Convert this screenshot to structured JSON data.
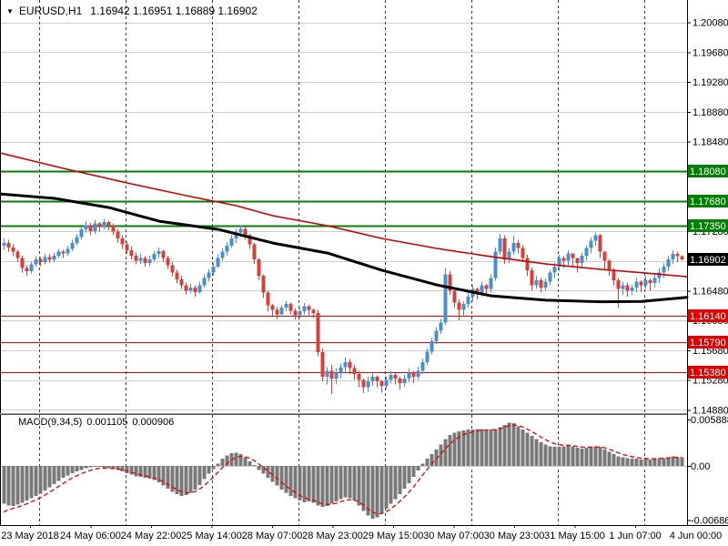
{
  "title": {
    "symbol": "EURUSD,H1",
    "ohlc": "1.16942 1.16951 1.16889 1.16902"
  },
  "indicator_label": {
    "name": "MACD(9,34,5)",
    "value_main": "0.001105",
    "value_signal": "0.000906"
  },
  "colors": {
    "background": "#ffffff",
    "bull_candle": "#4a8ed2",
    "bear_candle": "#d5403a",
    "ma_black": "#000000",
    "ma_red": "#cc0000",
    "resistance_green": "#008000",
    "support_red": "#e00000",
    "current_price_box": "#000000",
    "macd_histogram": "#787878",
    "macd_signal": "#e00000",
    "grid_h": "#cccccc",
    "grid_v": "#404040",
    "axis_line": "#000000",
    "text": "#000000"
  },
  "chart_data": {
    "type": "candlestick+macd",
    "symbol": "EURUSD",
    "timeframe": "H1",
    "last_bar": {
      "open": 1.16942,
      "high": 1.16951,
      "low": 1.16889,
      "close": 1.16902
    },
    "current_price": "1.16902",
    "price_axis": {
      "top": 1.20381,
      "bottom": 1.14822,
      "grid_start": 1.2008,
      "grid_step": 0.004,
      "grid_count": 14,
      "labels": [
        "1.20080",
        "1.19680",
        "1.19280",
        "1.18880",
        "1.18480",
        "1.17280",
        "1.16480",
        "1.16080",
        "1.15680",
        "1.15280",
        "1.14880"
      ]
    },
    "sr_levels": [
      {
        "price": 1.1808,
        "label": "1.18080",
        "kind": "resistance"
      },
      {
        "price": 1.1768,
        "label": "1.17680",
        "kind": "resistance"
      },
      {
        "price": 1.1735,
        "label": "1.17350",
        "kind": "resistance"
      },
      {
        "price": 1.1614,
        "label": "1.16140",
        "kind": "support"
      },
      {
        "price": 1.1579,
        "label": "1.15790",
        "kind": "support"
      },
      {
        "price": 1.1538,
        "label": "1.15380",
        "kind": "support"
      }
    ],
    "candles": {
      "first_open": 1.1708,
      "hlc": [
        [
          1.1718,
          1.1702,
          1.1712
        ],
        [
          1.1716,
          1.17,
          1.1706
        ],
        [
          1.171,
          1.1694,
          1.17
        ],
        [
          1.1703,
          1.1686,
          1.1692
        ],
        [
          1.1695,
          1.1672,
          1.1678
        ],
        [
          1.1682,
          1.1668,
          1.1674
        ],
        [
          1.1687,
          1.1671,
          1.1683
        ],
        [
          1.1694,
          1.168,
          1.169
        ],
        [
          1.1693,
          1.1681,
          1.1686
        ],
        [
          1.1697,
          1.1683,
          1.1693
        ],
        [
          1.1697,
          1.1685,
          1.1689
        ],
        [
          1.1699,
          1.1686,
          1.1695
        ],
        [
          1.1704,
          1.1692,
          1.17
        ],
        [
          1.1703,
          1.1692,
          1.1698
        ],
        [
          1.1708,
          1.1695,
          1.1704
        ],
        [
          1.1716,
          1.1701,
          1.1712
        ],
        [
          1.1724,
          1.1709,
          1.172
        ],
        [
          1.1734,
          1.1716,
          1.173
        ],
        [
          1.1741,
          1.1726,
          1.1736
        ],
        [
          1.1739,
          1.1722,
          1.1728
        ],
        [
          1.1743,
          1.1724,
          1.1738
        ],
        [
          1.174,
          1.1727,
          1.1733
        ],
        [
          1.1744,
          1.173,
          1.174
        ],
        [
          1.1742,
          1.1729,
          1.1735
        ],
        [
          1.1738,
          1.1722,
          1.1727
        ],
        [
          1.173,
          1.1712,
          1.1718
        ],
        [
          1.1722,
          1.1704,
          1.171
        ],
        [
          1.1714,
          1.1697,
          1.1702
        ],
        [
          1.1707,
          1.169,
          1.1695
        ],
        [
          1.1699,
          1.1683,
          1.1688
        ],
        [
          1.1697,
          1.1684,
          1.1692
        ],
        [
          1.1694,
          1.168,
          1.1685
        ],
        [
          1.1695,
          1.1681,
          1.169
        ],
        [
          1.1701,
          1.1687,
          1.1697
        ],
        [
          1.1706,
          1.1692,
          1.1701
        ],
        [
          1.1703,
          1.1687,
          1.1692
        ],
        [
          1.1695,
          1.1677,
          1.1682
        ],
        [
          1.1686,
          1.1667,
          1.1672
        ],
        [
          1.1676,
          1.1658,
          1.1663
        ],
        [
          1.1668,
          1.165,
          1.1655
        ],
        [
          1.1659,
          1.1643,
          1.1648
        ],
        [
          1.1657,
          1.1644,
          1.1652
        ],
        [
          1.1655,
          1.164,
          1.1646
        ],
        [
          1.166,
          1.1644,
          1.1655
        ],
        [
          1.167,
          1.1652,
          1.1665
        ],
        [
          1.1677,
          1.166,
          1.1672
        ],
        [
          1.1685,
          1.1668,
          1.168
        ],
        [
          1.1697,
          1.1678,
          1.1692
        ],
        [
          1.1705,
          1.1688,
          1.17
        ],
        [
          1.1713,
          1.1695,
          1.1708
        ],
        [
          1.1723,
          1.1705,
          1.1718
        ],
        [
          1.1731,
          1.1712,
          1.1726
        ],
        [
          1.1736,
          1.172,
          1.1731
        ],
        [
          1.1733,
          1.1716,
          1.1722
        ],
        [
          1.1724,
          1.1704,
          1.171
        ],
        [
          1.1712,
          1.1684,
          1.169
        ],
        [
          1.1692,
          1.1662,
          1.1668
        ],
        [
          1.167,
          1.1638,
          1.1645
        ],
        [
          1.1648,
          1.162,
          1.1628
        ],
        [
          1.163,
          1.1614,
          1.1622
        ],
        [
          1.1626,
          1.161,
          1.1616
        ],
        [
          1.1629,
          1.1613,
          1.1625
        ],
        [
          1.1634,
          1.162,
          1.163
        ],
        [
          1.1632,
          1.1616,
          1.1621
        ],
        [
          1.1624,
          1.1609,
          1.1615
        ],
        [
          1.1625,
          1.1611,
          1.162
        ],
        [
          1.1631,
          1.1616,
          1.1627
        ],
        [
          1.1629,
          1.1615,
          1.1622
        ],
        [
          1.1624,
          1.1611,
          1.1618
        ],
        [
          1.1622,
          1.156,
          1.1565
        ],
        [
          1.157,
          1.1526,
          1.1532
        ],
        [
          1.1545,
          1.1522,
          1.154
        ],
        [
          1.1548,
          1.1509,
          1.153
        ],
        [
          1.1544,
          1.1522,
          1.1538
        ],
        [
          1.155,
          1.153,
          1.1545
        ],
        [
          1.1558,
          1.1538,
          1.1552
        ],
        [
          1.1556,
          1.1536,
          1.1544
        ],
        [
          1.1548,
          1.1528,
          1.1536
        ],
        [
          1.154,
          1.1518,
          1.1528
        ],
        [
          1.153,
          1.151,
          1.1518
        ],
        [
          1.1532,
          1.1512,
          1.1526
        ],
        [
          1.1538,
          1.152,
          1.1532
        ],
        [
          1.1534,
          1.1518,
          1.1526
        ],
        [
          1.1528,
          1.1511,
          1.152
        ],
        [
          1.1533,
          1.1516,
          1.1528
        ],
        [
          1.154,
          1.1523,
          1.1535
        ],
        [
          1.1537,
          1.1522,
          1.153
        ],
        [
          1.1532,
          1.1515,
          1.1524
        ],
        [
          1.1535,
          1.1519,
          1.153
        ],
        [
          1.1543,
          1.1525,
          1.1538
        ],
        [
          1.154,
          1.1524,
          1.1532
        ],
        [
          1.1546,
          1.1528,
          1.154
        ],
        [
          1.1557,
          1.1536,
          1.1552
        ],
        [
          1.1571,
          1.1548,
          1.1566
        ],
        [
          1.1585,
          1.1562,
          1.158
        ],
        [
          1.1599,
          1.1576,
          1.1594
        ],
        [
          1.161,
          1.159,
          1.1605
        ],
        [
          1.1678,
          1.1602,
          1.167
        ],
        [
          1.1674,
          1.1642,
          1.1648
        ],
        [
          1.1652,
          1.1625,
          1.1632
        ],
        [
          1.1636,
          1.1608,
          1.1622
        ],
        [
          1.1634,
          1.1614,
          1.163
        ],
        [
          1.1645,
          1.1625,
          1.164
        ],
        [
          1.1655,
          1.1634,
          1.165
        ],
        [
          1.1652,
          1.1636,
          1.1645
        ],
        [
          1.166,
          1.164,
          1.1655
        ],
        [
          1.1657,
          1.1641,
          1.165
        ],
        [
          1.167,
          1.1645,
          1.1665
        ],
        [
          1.1706,
          1.1661,
          1.17
        ],
        [
          1.1724,
          1.1696,
          1.1718
        ],
        [
          1.1722,
          1.1684,
          1.169
        ],
        [
          1.1705,
          1.1685,
          1.17
        ],
        [
          1.1722,
          1.1696,
          1.1712
        ],
        [
          1.1716,
          1.1698,
          1.1705
        ],
        [
          1.1709,
          1.1686,
          1.1692
        ],
        [
          1.1696,
          1.1668,
          1.1675
        ],
        [
          1.1679,
          1.1648,
          1.1655
        ],
        [
          1.1668,
          1.165,
          1.1662
        ],
        [
          1.1665,
          1.1645,
          1.1652
        ],
        [
          1.1664,
          1.1648,
          1.166
        ],
        [
          1.1676,
          1.1655,
          1.1672
        ],
        [
          1.1685,
          1.1665,
          1.168
        ],
        [
          1.1696,
          1.1674,
          1.1692
        ],
        [
          1.1694,
          1.1678,
          1.1688
        ],
        [
          1.1702,
          1.1682,
          1.1698
        ],
        [
          1.1697,
          1.168,
          1.1692
        ],
        [
          1.169,
          1.1672,
          1.1685
        ],
        [
          1.1699,
          1.1678,
          1.1695
        ],
        [
          1.1709,
          1.1688,
          1.1705
        ],
        [
          1.1719,
          1.1698,
          1.1715
        ],
        [
          1.1726,
          1.1708,
          1.1722
        ],
        [
          1.1724,
          1.1692,
          1.17
        ],
        [
          1.1694,
          1.1675,
          1.1688
        ],
        [
          1.169,
          1.1668,
          1.1675
        ],
        [
          1.1678,
          1.1655,
          1.1662
        ],
        [
          1.1665,
          1.1625,
          1.165
        ],
        [
          1.166,
          1.1642,
          1.1655
        ],
        [
          1.1658,
          1.164,
          1.1648
        ],
        [
          1.1656,
          1.1642,
          1.1652
        ],
        [
          1.1665,
          1.1645,
          1.166
        ],
        [
          1.1662,
          1.1646,
          1.1655
        ],
        [
          1.1668,
          1.165,
          1.1662
        ],
        [
          1.1664,
          1.1648,
          1.1658
        ],
        [
          1.167,
          1.1652,
          1.1665
        ],
        [
          1.1678,
          1.1658,
          1.1672
        ],
        [
          1.1685,
          1.1665,
          1.168
        ],
        [
          1.1695,
          1.1674,
          1.169
        ],
        [
          1.1702,
          1.1684,
          1.1697
        ],
        [
          1.17,
          1.1686,
          1.1694
        ],
        [
          1.16951,
          1.16889,
          1.16902
        ]
      ]
    },
    "ma_black": [
      [
        0,
        1.17778
      ],
      [
        60,
        1.17717
      ],
      [
        120,
        1.17594
      ],
      [
        175,
        1.17411
      ],
      [
        240,
        1.17301
      ],
      [
        300,
        1.17118
      ],
      [
        360,
        1.16983
      ],
      [
        420,
        1.16751
      ],
      [
        480,
        1.16556
      ],
      [
        540,
        1.16409
      ],
      [
        600,
        1.1635
      ],
      [
        660,
        1.1633
      ],
      [
        705,
        1.16335
      ],
      [
        755,
        1.1639
      ]
    ],
    "ma_red": [
      [
        0,
        1.18328
      ],
      [
        70,
        1.1812
      ],
      [
        140,
        1.17924
      ],
      [
        210,
        1.17741
      ],
      [
        260,
        1.17619
      ],
      [
        300,
        1.17484
      ],
      [
        360,
        1.1735
      ],
      [
        420,
        1.17179
      ],
      [
        480,
        1.17045
      ],
      [
        540,
        1.16935
      ],
      [
        600,
        1.16837
      ],
      [
        660,
        1.16764
      ],
      [
        710,
        1.16715
      ],
      [
        755,
        1.16666
      ]
    ],
    "macd": {
      "title": "MACD(9,34,5)",
      "scale_top": 0.00646,
      "scale_bottom": -0.0075,
      "axis_labels": [
        "0.005888",
        "0.00",
        "-0.006866"
      ],
      "signal_start": -0.0064,
      "values": [
        -0.0048,
        -0.005,
        -0.0051,
        -0.0049,
        -0.0047,
        -0.0044,
        -0.0041,
        -0.0038,
        -0.0035,
        -0.0031,
        -0.0027,
        -0.0023,
        -0.0019,
        -0.0015,
        -0.0012,
        -0.0009,
        -0.0007,
        -0.0005,
        -0.0003,
        -0.0002,
        -0.0001,
        -0.0001,
        -0.0002,
        -0.0003,
        -0.0004,
        -0.0005,
        -0.0007,
        -0.0009,
        -0.0011,
        -0.0013,
        -0.0014,
        -0.0015,
        -0.0016,
        -0.0018,
        -0.0021,
        -0.0025,
        -0.0029,
        -0.0033,
        -0.0036,
        -0.0038,
        -0.0037,
        -0.0034,
        -0.003,
        -0.0024,
        -0.0017,
        -0.001,
        -0.0004,
        0.0003,
        0.0009,
        0.0013,
        0.0016,
        0.0017,
        0.0015,
        0.0011,
        0.0006,
        0.0001,
        -0.0005,
        -0.001,
        -0.0015,
        -0.002,
        -0.0025,
        -0.003,
        -0.0034,
        -0.0038,
        -0.0041,
        -0.0044,
        -0.0046,
        -0.0045,
        -0.0047,
        -0.005,
        -0.0052,
        -0.0051,
        -0.0048,
        -0.0045,
        -0.0042,
        -0.004,
        -0.0041,
        -0.0044,
        -0.005,
        -0.0057,
        -0.0063,
        -0.0067,
        -0.0065,
        -0.006,
        -0.0054,
        -0.0048,
        -0.0042,
        -0.0036,
        -0.0029,
        -0.0022,
        -0.0014,
        -0.0006,
        0.0003,
        0.0009,
        0.0015,
        0.0021,
        0.0027,
        0.0034,
        0.0039,
        0.0042,
        0.0044,
        0.0045,
        0.0046,
        0.0046,
        0.0047,
        0.0047,
        0.0046,
        0.0046,
        0.0047,
        0.0049,
        0.0052,
        0.0055,
        0.0054,
        0.005,
        0.0046,
        0.0042,
        0.0038,
        0.0034,
        0.003,
        0.0027,
        0.0025,
        0.0024,
        0.0024,
        0.0025,
        0.0026,
        0.0025,
        0.0023,
        0.0022,
        0.0023,
        0.0024,
        0.0025,
        0.0024,
        0.0021,
        0.0018,
        0.0015,
        0.0012,
        0.0011,
        0.001,
        0.0009,
        0.0009,
        0.0008,
        0.0009,
        0.0008,
        0.0009,
        0.001,
        0.001,
        0.0011,
        0.0012,
        0.0011,
        0.001105
      ]
    },
    "time_labels": [
      "23 May 2018",
      "24 May 06:00",
      "24 May 22:00",
      "25 May 14:00",
      "28 May 07:00",
      "28 May 23:00",
      "29 May 15:00",
      "30 May 07:00",
      "30 May 23:00",
      "31 May 15:00",
      "1 Jun 07:00",
      "4 Jun 00:00"
    ]
  }
}
